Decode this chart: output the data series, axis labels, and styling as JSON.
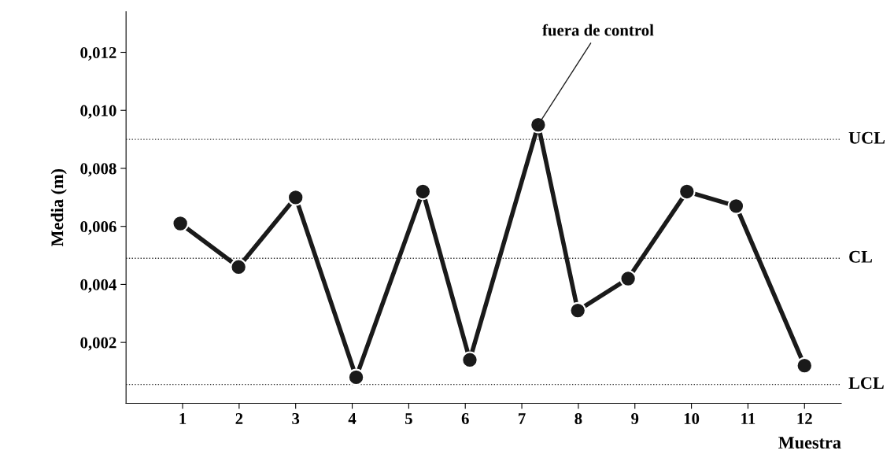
{
  "chart_data": {
    "type": "line",
    "ylabel": "Media (m)",
    "xlabel": "Muestra",
    "x": [
      0.96,
      1.99,
      3.0,
      4.07,
      5.25,
      6.08,
      7.29,
      7.99,
      8.88,
      9.92,
      10.79,
      12.0
    ],
    "series": [
      {
        "color": "#1a1a1a",
        "values": [
          0.0061,
          0.0046,
          0.007,
          0.0008,
          0.0072,
          0.0014,
          0.0095,
          0.0031,
          0.0042,
          0.0072,
          0.0067,
          0.0012
        ]
      }
    ],
    "marker": "circle",
    "line_style": "solid",
    "xlim": [
      0,
      12.65
    ],
    "ylim": [
      -0.0001,
      0.0134
    ],
    "xticks": [
      1,
      2,
      3,
      4,
      5,
      6,
      7,
      8,
      9,
      10,
      11,
      12
    ],
    "yticks": [
      {
        "value": 0.002,
        "label": "0,002"
      },
      {
        "value": 0.004,
        "label": "0,004"
      },
      {
        "value": 0.006,
        "label": "0,006"
      },
      {
        "value": 0.008,
        "label": "0,008"
      },
      {
        "value": 0.01,
        "label": "0,010"
      },
      {
        "value": 0.012,
        "label": "0,012"
      }
    ],
    "ref_lines": [
      {
        "axis": "y",
        "value": 0.009,
        "label": "UCL",
        "line_style": "dotted"
      },
      {
        "axis": "y",
        "value": 0.0049,
        "label": "CL",
        "line_style": "dotted"
      },
      {
        "axis": "y",
        "value": 0.00055,
        "label": "LCL",
        "line_style": "dotted"
      }
    ],
    "annotations": [
      {
        "text": "fuera de control",
        "x": 7.29,
        "y": 0.0095
      }
    ],
    "grid": false,
    "legend": false
  }
}
